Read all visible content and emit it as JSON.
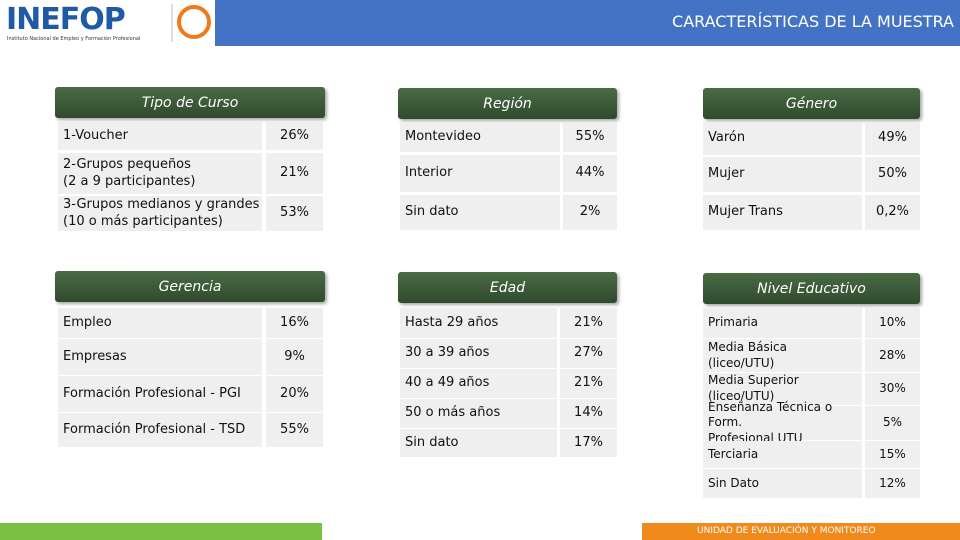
{
  "header": {
    "logo": "INEFOP",
    "logo_subtitle": "Instituto Nacional de Empleo y Formación Profesional",
    "title": "CARACTERÍSTICAS DE LA MUESTRA"
  },
  "tables": [
    {
      "title": "Tipo de Curso",
      "rows": [
        {
          "label": "1-Voucher",
          "value": "26%"
        },
        {
          "label": "2-Grupos pequeños\n(2 a 9 participantes)",
          "value": "21%"
        },
        {
          "label": "3-Grupos medianos y grandes\n(10 o más participantes)",
          "value": "53%"
        }
      ]
    },
    {
      "title": "Región",
      "rows": [
        {
          "label": "Montevideo",
          "value": "55%"
        },
        {
          "label": "Interior",
          "value": "44%"
        },
        {
          "label": "Sin dato",
          "value": "2%"
        }
      ]
    },
    {
      "title": "Género",
      "rows": [
        {
          "label": "Varón",
          "value": "49%"
        },
        {
          "label": "Mujer",
          "value": "50%"
        },
        {
          "label": "Mujer Trans",
          "value": "0,2%"
        }
      ]
    },
    {
      "title": "Gerencia",
      "rows": [
        {
          "label": "Empleo",
          "value": "16%"
        },
        {
          "label": "Empresas",
          "value": "9%"
        },
        {
          "label": "Formación Profesional - PGI",
          "value": "20%"
        },
        {
          "label": "Formación Profesional - TSD",
          "value": "55%"
        }
      ]
    },
    {
      "title": "Edad",
      "rows": [
        {
          "label": "Hasta 29 años",
          "value": "21%"
        },
        {
          "label": "30 a 39 años",
          "value": "27%"
        },
        {
          "label": "40 a 49 años",
          "value": "21%"
        },
        {
          "label": "50 o más años",
          "value": "14%"
        },
        {
          "label": "Sin dato",
          "value": "17%"
        }
      ]
    },
    {
      "title": "Nivel Educativo",
      "rows": [
        {
          "label": "Primaria",
          "value": "10%"
        },
        {
          "label": "Media Básica\n(liceo/UTU)",
          "value": "28%"
        },
        {
          "label": "Media Superior\n(liceo/UTU)",
          "value": "30%"
        },
        {
          "label": "Enseñanza Técnica o Form.\nProfesional UTU",
          "value": "5%"
        },
        {
          "label": "Terciaria",
          "value": "15%"
        },
        {
          "label": "Sin Dato",
          "value": "12%"
        }
      ]
    }
  ],
  "footer": {
    "text": "UNIDAD DE EVALUACIÓN Y MONITOREO"
  }
}
